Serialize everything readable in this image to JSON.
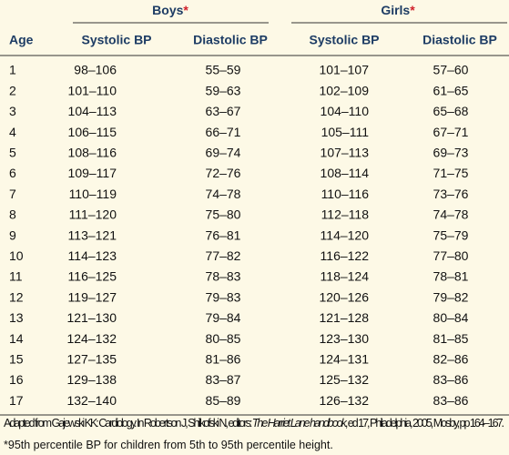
{
  "table": {
    "groups": [
      {
        "label": "Boys",
        "marker": "*"
      },
      {
        "label": "Girls",
        "marker": "*"
      }
    ],
    "columns": [
      "Age",
      "Systolic BP",
      "Diastolic BP",
      "Systolic BP",
      "Diastolic BP"
    ],
    "rows": [
      [
        "1",
        "98–106",
        "55–59",
        "101–107",
        "57–60"
      ],
      [
        "2",
        "101–110",
        "59–63",
        "102–109",
        "61–65"
      ],
      [
        "3",
        "104–113",
        "63–67",
        "104–110",
        "65–68"
      ],
      [
        "4",
        "106–115",
        "66–71",
        "105–111",
        "67–71"
      ],
      [
        "5",
        "108–116",
        "69–74",
        "107–113",
        "69–73"
      ],
      [
        "6",
        "109–117",
        "72–76",
        "108–114",
        "71–75"
      ],
      [
        "7",
        "110–119",
        "74–78",
        "110–116",
        "73–76"
      ],
      [
        "8",
        "111–120",
        "75–80",
        "112–118",
        "74–78"
      ],
      [
        "9",
        "113–121",
        "76–81",
        "114–120",
        "75–79"
      ],
      [
        "10",
        "114–123",
        "77–82",
        "116–122",
        "77–80"
      ],
      [
        "11",
        "116–125",
        "78–83",
        "118–124",
        "78–81"
      ],
      [
        "12",
        "119–127",
        "79–83",
        "120–126",
        "79–82"
      ],
      [
        "13",
        "121–130",
        "79–84",
        "121–128",
        "80–84"
      ],
      [
        "14",
        "124–132",
        "80–85",
        "123–130",
        "81–85"
      ],
      [
        "15",
        "127–135",
        "81–86",
        "124–131",
        "82–86"
      ],
      [
        "16",
        "129–138",
        "83–87",
        "125–132",
        "83–86"
      ],
      [
        "17",
        "132–140",
        "85–89",
        "126–132",
        "83–86"
      ]
    ]
  },
  "footnotes": {
    "source": {
      "before": "Adapted from Gajewski KK: Cardiology. In Robertson J, Shilkofski N, editors: ",
      "title": "The Harriet Lane handbook",
      "after": ", ed 17, Philadelphia, 2005, Mosby, pp 164–167."
    },
    "note": {
      "marker": "*",
      "text": "95th percentile BP for children from 5th to 95th percentile height."
    }
  }
}
